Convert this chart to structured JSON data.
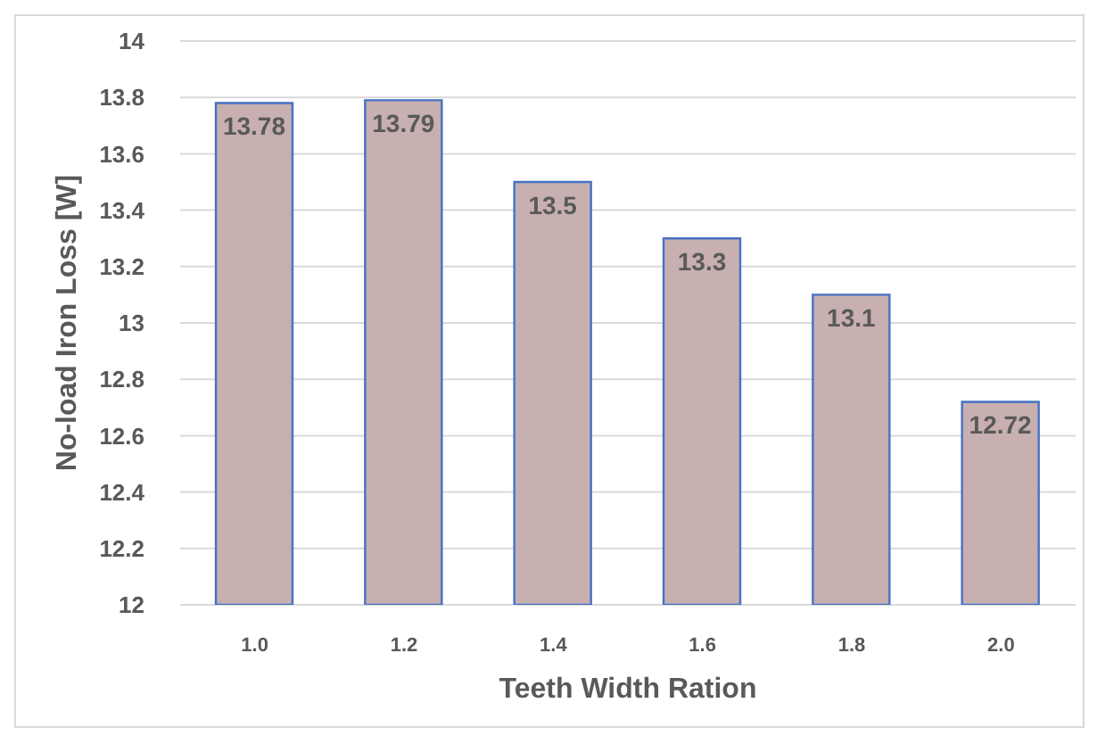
{
  "chart_data": {
    "type": "bar",
    "xlabel": "Teeth Width Ration",
    "ylabel": "No-load Iron Loss [W]",
    "categories": [
      "1.0",
      "1.2",
      "1.4",
      "1.6",
      "1.8",
      "2.0"
    ],
    "values": [
      13.78,
      13.79,
      13.5,
      13.3,
      13.1,
      12.72
    ],
    "color": "#c8afb0",
    "ylim": [
      12,
      14
    ],
    "yticks": [
      12,
      12.2,
      12.4,
      12.6,
      12.8,
      13,
      13.2,
      13.4,
      13.6,
      13.8,
      14
    ],
    "grid": "y",
    "data_labels": true
  }
}
